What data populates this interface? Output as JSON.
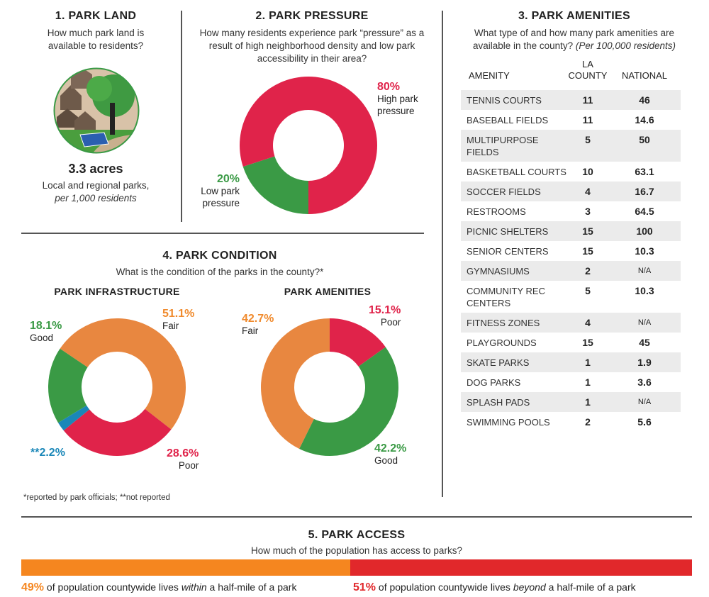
{
  "colors": {
    "red": "#e0234a",
    "green": "#3a9a45",
    "orange": "#e88740",
    "blue": "#1a87b8",
    "bar_orange": "#f5861f",
    "bar_red": "#e1282b"
  },
  "park_land": {
    "title": "1. PARK LAND",
    "question": "How much park land is available to residents?",
    "value": "3.3 acres",
    "desc": "Local and regional parks,",
    "unit": "per 1,000 residents",
    "icon": "park-illustration"
  },
  "park_pressure": {
    "title": "2. PARK PRESSURE",
    "question": "How many residents experience park “pressure” as a result of high neighborhood density and low park accessibility in their area?"
  },
  "park_amenities": {
    "title": "3. PARK AMENITIES",
    "question": "What type of and how many park amenities are available in the county?",
    "question_note": "(Per 100,000 residents)",
    "columns": [
      "AMENITY",
      "LA COUNTY",
      "NATIONAL"
    ],
    "rows": [
      {
        "amenity": "TENNIS COURTS",
        "la": "11",
        "national": "46"
      },
      {
        "amenity": "BASEBALL FIELDS",
        "la": "11",
        "national": "14.6"
      },
      {
        "amenity": "MULTIPURPOSE FIELDS",
        "la": "5",
        "national": "50"
      },
      {
        "amenity": "BASKETBALL COURTS",
        "la": "10",
        "national": "63.1"
      },
      {
        "amenity": "SOCCER FIELDS",
        "la": "4",
        "national": "16.7"
      },
      {
        "amenity": "RESTROOMS",
        "la": "3",
        "national": "64.5"
      },
      {
        "amenity": "PICNIC SHELTERS",
        "la": "15",
        "national": "100"
      },
      {
        "amenity": "SENIOR CENTERS",
        "la": "15",
        "national": "10.3"
      },
      {
        "amenity": "GYMNASIUMS",
        "la": "2",
        "national": "N/A"
      },
      {
        "amenity": "COMMUNITY REC CENTERS",
        "la": "5",
        "national": "10.3"
      },
      {
        "amenity": "FITNESS ZONES",
        "la": "4",
        "national": "N/A"
      },
      {
        "amenity": "PLAYGROUNDS",
        "la": "15",
        "national": "45"
      },
      {
        "amenity": "SKATE PARKS",
        "la": "1",
        "national": "1.9"
      },
      {
        "amenity": "DOG PARKS",
        "la": "1",
        "national": "3.6"
      },
      {
        "amenity": "SPLASH PADS",
        "la": "1",
        "national": "N/A"
      },
      {
        "amenity": "SWIMMING POOLS",
        "la": "2",
        "national": "5.6"
      }
    ]
  },
  "park_condition": {
    "title": "4. PARK CONDITION",
    "question": "What is the condition of the parks in the county?*",
    "footnote": "*reported by park officials; **not reported"
  },
  "park_access": {
    "title": "5. PARK ACCESS",
    "question": "How much of the population has access to parks?",
    "within": {
      "pct": "49%",
      "pre": " of population countywide lives ",
      "em": "within",
      "post": " a half-mile of a park"
    },
    "beyond": {
      "pct": "51%",
      "pre": " of population countywide lives ",
      "em": "beyond",
      "post": " a half-mile of a park"
    }
  },
  "chart_data": [
    {
      "type": "pie",
      "donut": true,
      "id": "pressure",
      "slices": [
        {
          "label": "Low park pressure",
          "value": 20,
          "display": "20%",
          "color": "#3a9a45"
        },
        {
          "label": "High park pressure",
          "value": 80,
          "display": "80%",
          "color": "#e0234a"
        }
      ]
    },
    {
      "type": "pie",
      "donut": true,
      "id": "infrastructure",
      "title": "PARK INFRASTRUCTURE",
      "slices": [
        {
          "label": "Fair",
          "value": 51.1,
          "display": "51.1%",
          "color": "#e88740"
        },
        {
          "label": "Poor",
          "value": 28.6,
          "display": "28.6%",
          "color": "#e0234a"
        },
        {
          "label": "",
          "value": 2.2,
          "display": "**2.2%",
          "color": "#1a87b8"
        },
        {
          "label": "Good",
          "value": 18.1,
          "display": "18.1%",
          "color": "#3a9a45"
        }
      ]
    },
    {
      "type": "pie",
      "donut": true,
      "id": "amenities",
      "title": "PARK AMENITIES",
      "slices": [
        {
          "label": "Poor",
          "value": 15.1,
          "display": "15.1%",
          "color": "#e0234a"
        },
        {
          "label": "Good",
          "value": 42.2,
          "display": "42.2%",
          "color": "#3a9a45"
        },
        {
          "label": "Fair",
          "value": 42.7,
          "display": "42.7%",
          "color": "#e88740"
        }
      ]
    },
    {
      "type": "bar",
      "stacked": true,
      "id": "access",
      "values": [
        {
          "label": "within a half-mile",
          "value": 49,
          "color": "#f5861f"
        },
        {
          "label": "beyond a half-mile",
          "value": 51,
          "color": "#e1282b"
        }
      ]
    }
  ]
}
